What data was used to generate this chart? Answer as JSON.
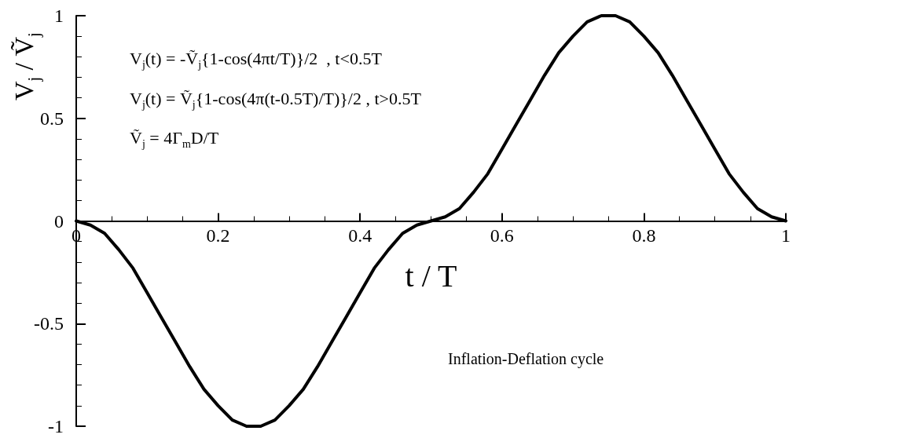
{
  "chart_data": {
    "type": "line",
    "xlabel": "t / T",
    "ylabel": "V$_{j}$ / Ṽ$_{j}$",
    "annotations": [
      "V$_{j}$(t) = -Ṽ$_{j}${1-cos(4πt/T)}/2  , t<0.5T",
      "V$_{j}$(t) = Ṽ$_{j}${1-cos(4π(t-0.5T)/T)}/2 , t>0.5T",
      "Ṽ$_{j}$ = 4Γ$_{m}$D/T",
      "Inflation-Deflation cycle"
    ],
    "x": [
      0,
      0.02,
      0.04,
      0.06,
      0.08,
      0.1,
      0.12,
      0.14,
      0.16,
      0.18,
      0.2,
      0.22,
      0.24,
      0.26,
      0.28,
      0.3,
      0.32,
      0.34,
      0.36,
      0.38,
      0.4,
      0.42,
      0.44,
      0.46,
      0.48,
      0.5,
      0.52,
      0.54,
      0.56,
      0.58,
      0.6,
      0.62,
      0.64,
      0.66,
      0.68,
      0.7,
      0.72,
      0.74,
      0.76,
      0.78,
      0.8,
      0.82,
      0.84,
      0.86,
      0.88,
      0.9,
      0.92,
      0.94,
      0.96,
      0.98,
      1
    ],
    "series": [
      {
        "color": "#000000",
        "values": [
          0,
          -0.02,
          -0.06,
          -0.14,
          -0.23,
          -0.35,
          -0.47,
          -0.59,
          -0.71,
          -0.82,
          -0.9,
          -0.97,
          -1,
          -1,
          -0.97,
          -0.9,
          -0.82,
          -0.71,
          -0.59,
          -0.47,
          -0.35,
          -0.23,
          -0.14,
          -0.06,
          -0.02,
          0,
          0.02,
          0.06,
          0.14,
          0.23,
          0.35,
          0.47,
          0.59,
          0.71,
          0.82,
          0.9,
          0.97,
          1,
          1,
          0.97,
          0.9,
          0.82,
          0.71,
          0.59,
          0.47,
          0.35,
          0.23,
          0.14,
          0.06,
          0.02,
          0
        ]
      }
    ],
    "xlim": [
      0,
      1
    ],
    "xticks": [
      0,
      0.2,
      0.4,
      0.6,
      0.8,
      1
    ],
    "ylim": [
      -1,
      1
    ],
    "yticks": [
      -1,
      -0.5,
      0,
      0.5,
      1
    ],
    "grid": false,
    "marker": "none",
    "line_style": "solid"
  }
}
